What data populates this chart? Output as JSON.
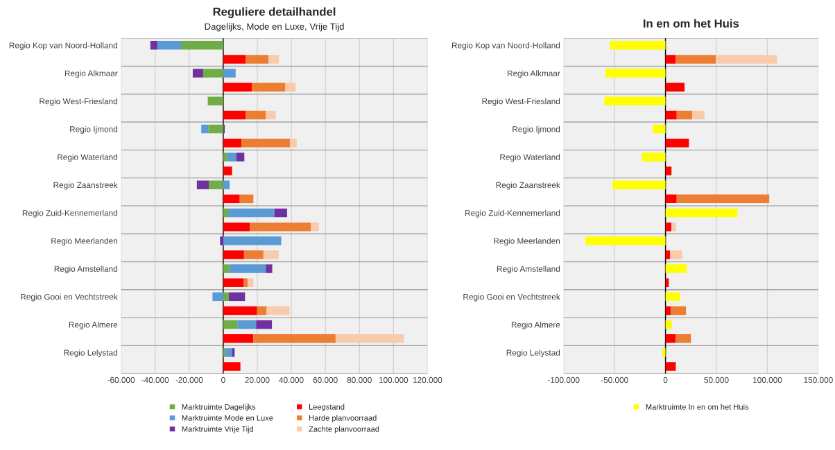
{
  "chart_data": [
    {
      "type": "bar",
      "orientation": "horizontal",
      "stacked": true,
      "title": "Reguliere detailhandel",
      "subtitle": "Dagelijks, Mode en Luxe, Vrije Tijd",
      "categories": [
        "Regio Kop van Noord-Holland",
        null,
        "Regio Alkmaar",
        null,
        "Regio West-Friesland",
        null,
        "Regio Ijmond",
        null,
        "Regio Waterland",
        null,
        "Regio Zaanstreek",
        null,
        "Regio Zuid-Kennemerland",
        null,
        "Regio Meerlanden",
        null,
        "Regio Amstelland",
        null,
        "Regio Gooi en Vechtstreek",
        null,
        "Regio Almere",
        null,
        "Regio Lelystad",
        null
      ],
      "series": [
        {
          "name": "Marktruimte Dagelijks",
          "color": "#70ad47",
          "values": [
            -24800,
            null,
            -11800,
            null,
            -9100,
            null,
            -8800,
            null,
            2400,
            null,
            -8400,
            null,
            2900,
            null,
            null,
            null,
            3800,
            null,
            3300,
            null,
            8300,
            null,
            1200,
            null
          ]
        },
        {
          "name": "Marktruimte Mode en Luxe",
          "color": "#5b9bd5",
          "values": [
            -13900,
            null,
            7300,
            null,
            null,
            null,
            -4100,
            null,
            5400,
            null,
            3800,
            null,
            27100,
            null,
            34100,
            null,
            21200,
            null,
            -6300,
            null,
            11000,
            null,
            3900,
            null
          ]
        },
        {
          "name": "Marktruimte Vrije Tijd",
          "color": "#7030a0",
          "values": [
            -4100,
            null,
            -6100,
            null,
            null,
            null,
            900,
            null,
            4600,
            null,
            -7100,
            null,
            7500,
            null,
            -1900,
            null,
            3800,
            null,
            9500,
            null,
            9300,
            null,
            1600,
            null
          ]
        },
        {
          "name": "Leegstand",
          "color": "#ff0000",
          "values": [
            null,
            13100,
            null,
            16900,
            null,
            13300,
            null,
            10700,
            null,
            5200,
            null,
            9700,
            null,
            15600,
            null,
            12200,
            null,
            12100,
            null,
            19900,
            null,
            17700,
            null,
            10100
          ]
        },
        {
          "name": "Harde planvoorraad",
          "color": "#ed7d31",
          "values": [
            null,
            13500,
            null,
            19600,
            null,
            11800,
            null,
            28600,
            null,
            null,
            null,
            8000,
            null,
            35800,
            null,
            11400,
            null,
            2200,
            null,
            5600,
            null,
            48300,
            null,
            null
          ]
        },
        {
          "name": "Zachte planvoorraad",
          "color": "#f8cbad",
          "values": [
            null,
            6100,
            null,
            6000,
            null,
            5700,
            null,
            3900,
            null,
            null,
            null,
            null,
            null,
            4800,
            null,
            9000,
            null,
            3400,
            null,
            13500,
            null,
            40100,
            null,
            null
          ]
        }
      ],
      "xlim": [
        -60000,
        120000
      ],
      "xticks": [
        {
          "value": -60000,
          "label": "-60.000"
        },
        {
          "value": -40000,
          "label": "-40.000"
        },
        {
          "value": -20000,
          "label": "-20.000"
        },
        0,
        {
          "value": 20000,
          "label": "20.000"
        },
        {
          "value": 40000,
          "label": "40.000"
        },
        {
          "value": 60000,
          "label": "60.000"
        },
        {
          "value": 80000,
          "label": "80.000"
        },
        {
          "value": 100000,
          "label": "100.000"
        },
        {
          "value": 120000,
          "label": "120.000"
        }
      ],
      "ref_lines": [
        {
          "axis": "x",
          "value": 0,
          "color": "#000000"
        }
      ],
      "grid": true,
      "legend": "bottom"
    },
    {
      "type": "bar",
      "orientation": "horizontal",
      "stacked": true,
      "title": "In en om het Huis",
      "categories": [
        "Regio Kop van Noord-Holland",
        null,
        "Regio Alkmaar",
        null,
        "Regio West-Friesland",
        null,
        "Regio Ijmond",
        null,
        "Regio Waterland",
        null,
        "Regio Zaanstreek",
        null,
        "Regio Zuid-Kennemerland",
        null,
        "Regio Meerlanden",
        null,
        "Regio Amstelland",
        null,
        "Regio Gooi en Vechtstreek",
        null,
        "Regio Almere",
        null,
        "Regio Lelystad",
        null
      ],
      "series": [
        {
          "name": "Marktruimte In en om het Huis",
          "color": "#ffff00",
          "values": [
            -54500,
            null,
            -59000,
            null,
            -60100,
            null,
            -12600,
            null,
            -23200,
            null,
            -52000,
            null,
            70700,
            null,
            -78600,
            null,
            20700,
            null,
            14400,
            null,
            6100,
            null,
            -3200,
            null
          ]
        },
        {
          "color": "#ff0000",
          "values": [
            null,
            10100,
            null,
            18700,
            null,
            11000,
            null,
            23000,
            null,
            5900,
            null,
            11000,
            null,
            5900,
            null,
            4500,
            null,
            3200,
            null,
            5000,
            null,
            9900,
            null,
            10100
          ]
        },
        {
          "color": "#ed7d31",
          "values": [
            null,
            39200,
            null,
            null,
            null,
            15100,
            null,
            null,
            null,
            null,
            null,
            90800,
            null,
            null,
            null,
            null,
            null,
            null,
            null,
            15100,
            null,
            15100,
            null,
            null
          ]
        },
        {
          "color": "#f8cbad",
          "values": [
            null,
            60100,
            null,
            null,
            null,
            12200,
            null,
            null,
            null,
            null,
            null,
            null,
            null,
            4500,
            null,
            11900,
            null,
            null,
            null,
            null,
            null,
            null,
            null,
            null
          ]
        }
      ],
      "xlim": [
        -100000,
        150000
      ],
      "xticks": [
        {
          "value": -100000,
          "label": "-100.000"
        },
        {
          "value": -50000,
          "label": "-50.000"
        },
        0,
        {
          "value": 50000,
          "label": "50.000"
        },
        {
          "value": 100000,
          "label": "100.000"
        },
        {
          "value": 150000,
          "label": "150.000"
        }
      ],
      "ref_lines": [
        {
          "axis": "x",
          "value": 0,
          "color": "#000000"
        }
      ],
      "grid": true,
      "legend": "bottom"
    }
  ]
}
